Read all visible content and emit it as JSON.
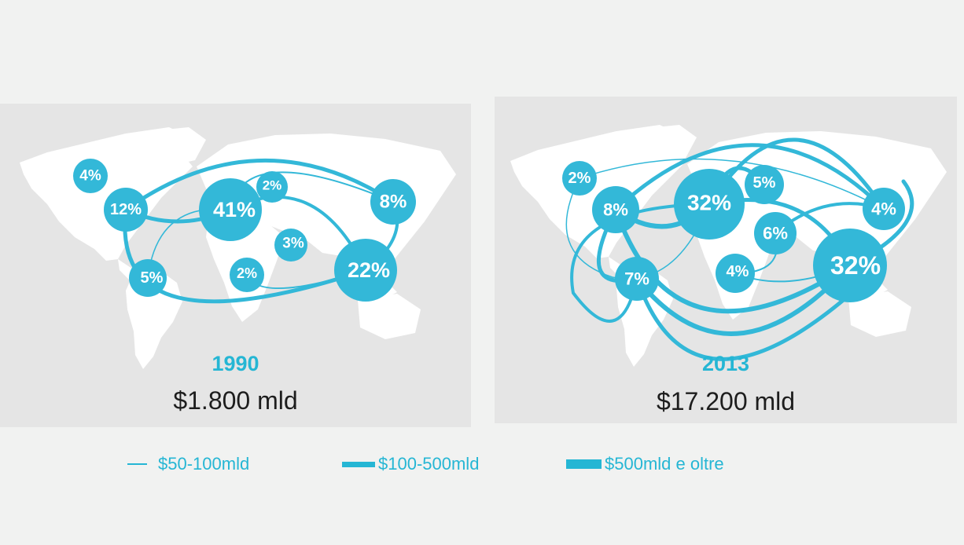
{
  "panels": [
    {
      "year": "1990",
      "total": "$1.800 mld",
      "regions": [
        {
          "id": "canada",
          "label": "4%",
          "value": 4
        },
        {
          "id": "usa",
          "label": "12%",
          "value": 12
        },
        {
          "id": "latam",
          "label": "5%",
          "value": 5
        },
        {
          "id": "europe",
          "label": "41%",
          "value": 41
        },
        {
          "id": "russia",
          "label": "2%",
          "value": 2
        },
        {
          "id": "africa",
          "label": "2%",
          "value": 2
        },
        {
          "id": "middle-east",
          "label": "3%",
          "value": 3
        },
        {
          "id": "japan",
          "label": "8%",
          "value": 8
        },
        {
          "id": "asia",
          "label": "22%",
          "value": 22
        }
      ]
    },
    {
      "year": "2013",
      "total": "$17.200 mld",
      "regions": [
        {
          "id": "canada",
          "label": "2%",
          "value": 2
        },
        {
          "id": "usa",
          "label": "8%",
          "value": 8
        },
        {
          "id": "latam",
          "label": "7%",
          "value": 7
        },
        {
          "id": "europe",
          "label": "32%",
          "value": 32
        },
        {
          "id": "russia",
          "label": "5%",
          "value": 5
        },
        {
          "id": "middle-east",
          "label": "6%",
          "value": 6
        },
        {
          "id": "africa",
          "label": "4%",
          "value": 4
        },
        {
          "id": "japan",
          "label": "4%",
          "value": 4
        },
        {
          "id": "asia",
          "label": "32%",
          "value": 32
        }
      ]
    }
  ],
  "legend": [
    {
      "label": "$50-100mld",
      "tier": "thin"
    },
    {
      "label": "$100-500mld",
      "tier": "medium"
    },
    {
      "label": "$500mld e oltre",
      "tier": "thick"
    }
  ],
  "colors": {
    "accent": "#25b6d4",
    "map": "#ffffff",
    "panel": "#e5e5e5",
    "background": "#f1f2f1"
  }
}
